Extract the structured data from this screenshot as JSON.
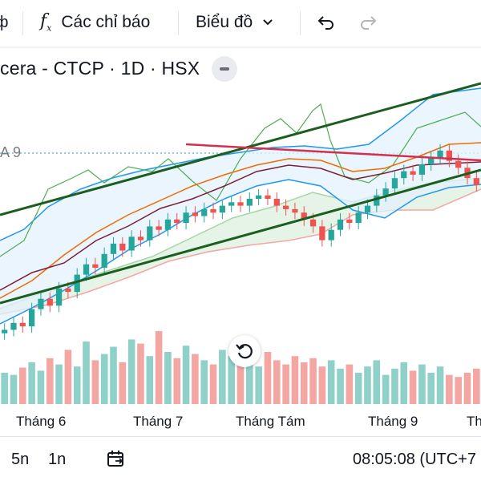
{
  "toolbar": {
    "indicators_label": "Các chỉ báo",
    "chart_type_label": "Biểu đồ",
    "left_cut_glyph": "ф"
  },
  "symbol": {
    "text": "cera - CTCP · 1D · HSX"
  },
  "indicator": {
    "label": "A 9"
  },
  "xaxis": {
    "labels": [
      "Tháng 6",
      "Tháng 7",
      "Tháng Tám",
      "Tháng 9",
      "Th"
    ]
  },
  "bottom": {
    "range_5n": "5n",
    "range_1n": "1n",
    "time": "08:05:08 (UTC+7"
  },
  "colors": {
    "up": "#26a69a",
    "down": "#ef5350",
    "vol_up": "#8fd1c9",
    "vol_down": "#f4a6a3",
    "bb": "#2196f3",
    "trend": "#1b5e20",
    "resistance": "#d32f4f"
  },
  "chart_data": {
    "type": "candlestick",
    "series": [
      {
        "name": "price",
        "values": [
          92,
          94,
          93,
          98,
          101,
          99,
          104,
          103,
          108,
          111,
          110,
          114,
          117,
          115,
          119,
          118,
          122,
          121,
          124,
          123,
          126,
          125,
          127,
          126,
          128,
          129,
          128,
          130,
          131,
          130,
          128,
          127,
          126,
          124,
          122,
          118,
          121,
          124,
          123,
          126,
          128,
          131,
          133,
          136,
          138,
          137,
          140,
          142,
          144,
          141,
          139,
          136,
          134
        ]
      },
      {
        "name": "volume",
        "values": [
          30,
          28,
          35,
          40,
          32,
          44,
          38,
          52,
          36,
          60,
          42,
          48,
          55,
          40,
          62,
          58,
          46,
          70,
          50,
          44,
          56,
          48,
          42,
          38,
          52,
          46,
          40,
          44,
          36,
          50,
          42,
          38,
          46,
          40,
          44,
          36,
          42,
          34,
          38,
          30,
          36,
          42,
          28,
          34,
          40,
          32,
          38,
          30,
          36,
          28,
          26,
          30,
          34
        ]
      }
    ]
  }
}
